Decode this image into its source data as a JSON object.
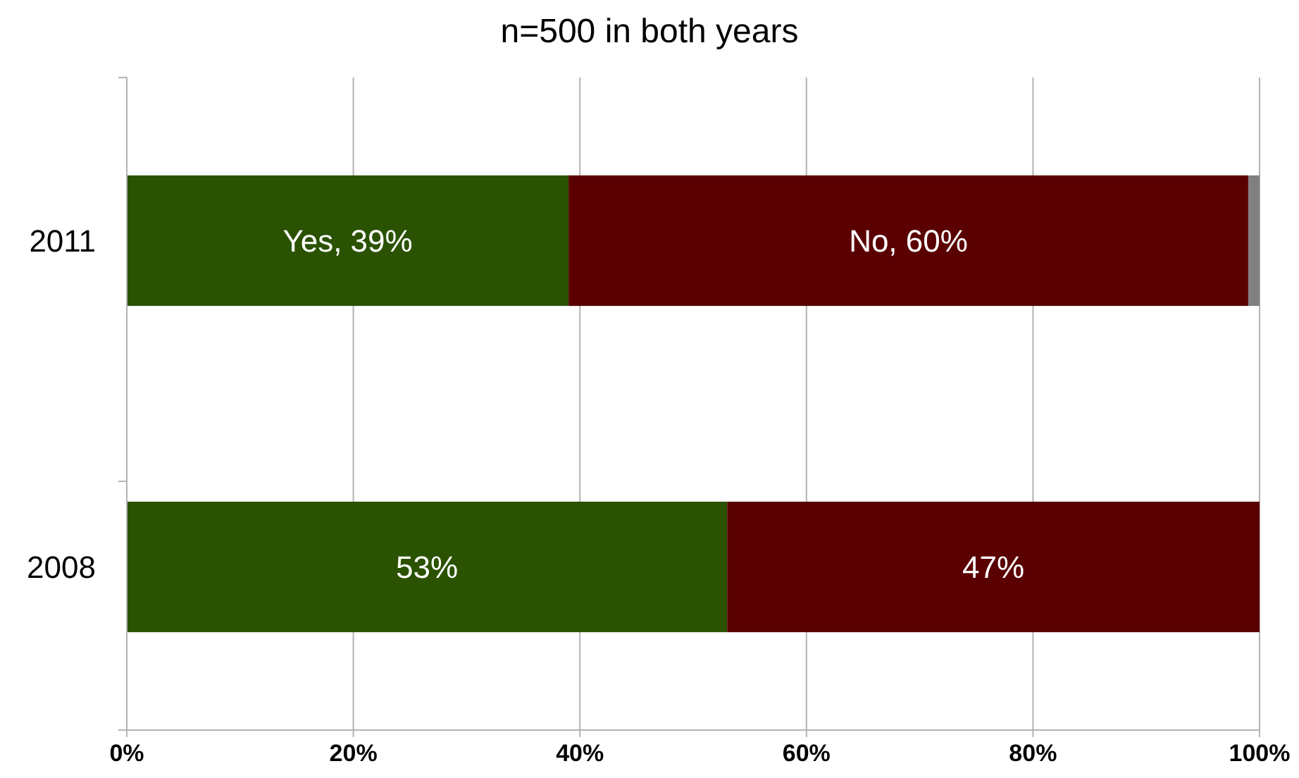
{
  "chart_data": {
    "type": "bar",
    "orientation": "horizontal",
    "stacked": true,
    "title": "n=500 in both years",
    "categories": [
      "2011",
      "2008"
    ],
    "series": [
      {
        "color": "#2a5200",
        "values": [
          39,
          53
        ],
        "value_labels": [
          "Yes, 39%",
          "53%"
        ]
      },
      {
        "color": "#5a0000",
        "values": [
          60,
          47
        ],
        "value_labels": [
          "No, 60%",
          "47%"
        ]
      },
      {
        "color": "#808080",
        "values": [
          1,
          0
        ],
        "value_labels": [
          null,
          null
        ]
      }
    ],
    "xlim": [
      0,
      100
    ],
    "xticks": [
      {
        "value": 0,
        "label": "0%"
      },
      {
        "value": 20,
        "label": "20%"
      },
      {
        "value": 40,
        "label": "40%"
      },
      {
        "value": 60,
        "label": "60%"
      },
      {
        "value": 80,
        "label": "80%"
      },
      {
        "value": 100,
        "label": "100%"
      }
    ],
    "grid": "x"
  }
}
